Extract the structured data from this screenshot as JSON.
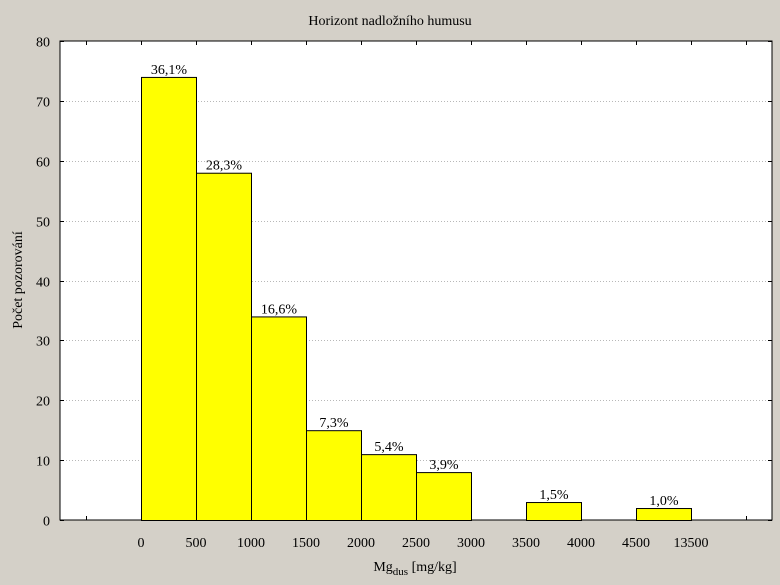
{
  "chart_data": {
    "type": "bar",
    "title": "Horizont nadložního humusu",
    "xlabel": "Mg",
    "xlabel_subscript": "dus",
    "xlabel_unit": " [mg/kg]",
    "ylabel": "Počet pozorování",
    "ylim": [
      0,
      80
    ],
    "yticks": [
      "0",
      "10",
      "20",
      "30",
      "40",
      "50",
      "60",
      "70",
      "80"
    ],
    "xticks": [
      "0",
      "500",
      "1000",
      "1500",
      "2000",
      "2500",
      "3000",
      "3500",
      "4000",
      "4500",
      "13500"
    ],
    "grid": true,
    "bars": [
      {
        "from": "0",
        "to": "500",
        "value": 74,
        "label": "36,1%"
      },
      {
        "from": "500",
        "to": "1000",
        "value": 58,
        "label": "28,3%"
      },
      {
        "from": "1000",
        "to": "1500",
        "value": 34,
        "label": "16,6%"
      },
      {
        "from": "1500",
        "to": "2000",
        "value": 15,
        "label": "7,3%"
      },
      {
        "from": "2000",
        "to": "2500",
        "value": 11,
        "label": "5,4%"
      },
      {
        "from": "2500",
        "to": "3000",
        "value": 8,
        "label": "3,9%"
      },
      {
        "from": "3000",
        "to": "3500",
        "value": 0,
        "label": ""
      },
      {
        "from": "3500",
        "to": "4000",
        "value": 3,
        "label": "1,5%"
      },
      {
        "from": "4000",
        "to": "4500",
        "value": 0,
        "label": ""
      },
      {
        "from": "4500",
        "to": "13500",
        "value": 2,
        "label": "1,0%"
      }
    ],
    "colors": {
      "background": "#d4d0c8",
      "plot_background": "#ffffff",
      "bar_fill": "#ffff00",
      "bar_stroke": "#000000",
      "grid": "#b8b8b8"
    }
  }
}
